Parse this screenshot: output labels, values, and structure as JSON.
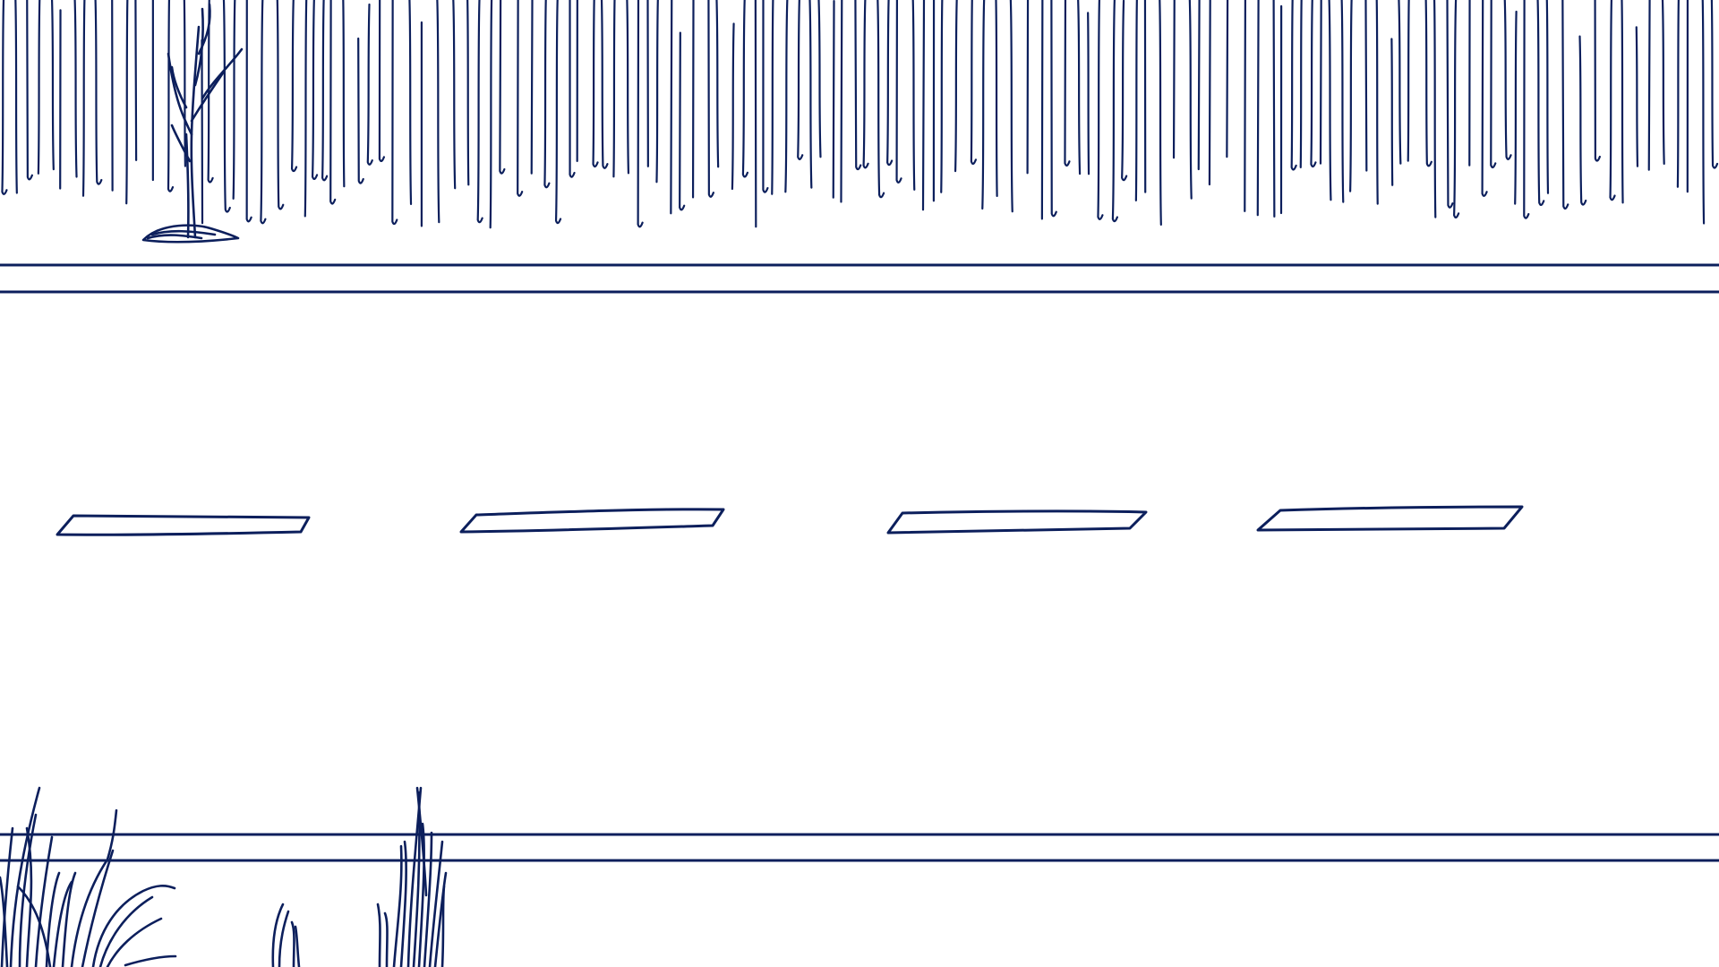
{
  "scene": {
    "description_hidden": "",
    "background_color": "#ffffff",
    "ink_color": "#0c1f5c",
    "icons": [
      "hatched-tree-line-icon",
      "bare-sapling-icon",
      "road-edge-lines-icon",
      "lane-dash-icon",
      "grass-tuft-icon"
    ],
    "lane_dash_count": 4,
    "grass_tuft_count": 3
  }
}
